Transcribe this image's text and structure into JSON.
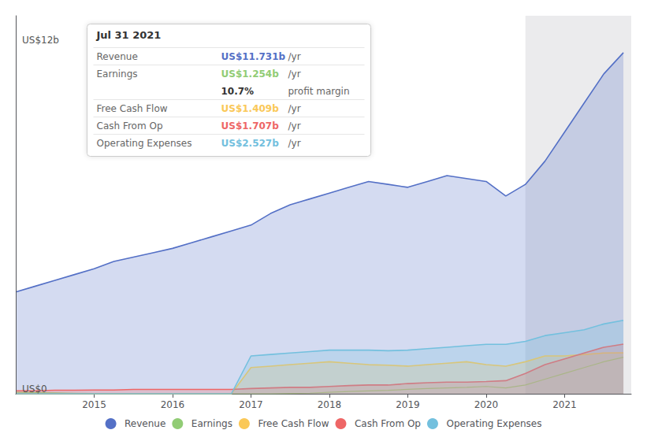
{
  "chart_data": {
    "type": "area",
    "x": [
      2014.0,
      2014.25,
      2014.5,
      2014.75,
      2015.0,
      2015.25,
      2015.5,
      2015.75,
      2016.0,
      2016.25,
      2016.5,
      2016.75,
      2017.0,
      2017.25,
      2017.5,
      2017.75,
      2018.0,
      2018.25,
      2018.5,
      2018.75,
      2019.0,
      2019.25,
      2019.5,
      2019.75,
      2020.0,
      2020.25,
      2020.5,
      2020.75,
      2021.0,
      2021.25,
      2021.5,
      2021.75
    ],
    "series": [
      {
        "name": "Revenue",
        "type": "area",
        "values": [
          3.5,
          3.7,
          3.9,
          4.1,
          4.3,
          4.55,
          4.7,
          4.85,
          5.0,
          5.2,
          5.4,
          5.6,
          5.8,
          6.2,
          6.5,
          6.7,
          6.9,
          7.1,
          7.3,
          7.2,
          7.1,
          7.3,
          7.5,
          7.4,
          7.3,
          6.8,
          7.2,
          8.0,
          9.0,
          10.0,
          11.0,
          11.731
        ]
      },
      {
        "name": "Earnings",
        "type": "line",
        "values": [
          0.05,
          0.04,
          0.03,
          0.02,
          0.01,
          0.0,
          0.0,
          0.0,
          0.0,
          0.0,
          0.0,
          0.0,
          0.0,
          0.0,
          0.01,
          0.02,
          0.05,
          0.08,
          0.1,
          0.12,
          0.15,
          0.18,
          0.2,
          0.22,
          0.25,
          0.2,
          0.3,
          0.5,
          0.7,
          0.9,
          1.1,
          1.254
        ]
      },
      {
        "name": "Free Cash Flow",
        "type": "area",
        "values": [
          0.0,
          0.0,
          0.0,
          0.0,
          0.0,
          0.0,
          0.0,
          0.0,
          0.0,
          0.0,
          0.0,
          0.0,
          0.9,
          0.95,
          1.0,
          1.05,
          1.1,
          1.05,
          1.0,
          0.98,
          0.95,
          1.0,
          1.05,
          1.1,
          1.0,
          0.95,
          1.1,
          1.3,
          1.3,
          1.35,
          1.4,
          1.409
        ]
      },
      {
        "name": "Cash From Op",
        "type": "area",
        "values": [
          0.1,
          0.1,
          0.12,
          0.12,
          0.13,
          0.13,
          0.15,
          0.15,
          0.15,
          0.15,
          0.15,
          0.15,
          0.18,
          0.2,
          0.22,
          0.22,
          0.25,
          0.28,
          0.3,
          0.3,
          0.35,
          0.38,
          0.4,
          0.4,
          0.42,
          0.45,
          0.7,
          1.0,
          1.2,
          1.4,
          1.6,
          1.707
        ]
      },
      {
        "name": "Operating Expenses",
        "type": "area",
        "values": [
          0.0,
          0.0,
          0.0,
          0.0,
          0.0,
          0.0,
          0.0,
          0.0,
          0.0,
          0.0,
          0.0,
          0.0,
          1.3,
          1.35,
          1.4,
          1.45,
          1.5,
          1.5,
          1.5,
          1.48,
          1.5,
          1.55,
          1.6,
          1.65,
          1.7,
          1.7,
          1.8,
          2.0,
          2.1,
          2.2,
          2.4,
          2.527
        ]
      }
    ],
    "xlim": [
      2014.0,
      2021.85
    ],
    "xticks": [
      2015,
      2016,
      2017,
      2018,
      2019,
      2020,
      2021
    ],
    "ylim": [
      0,
      13
    ],
    "yticks": [
      {
        "value": 0,
        "label": "US$0"
      },
      {
        "value": 12,
        "label": "US$12b"
      }
    ],
    "highlight_range": [
      2020.5,
      2021.85
    ],
    "grid": false,
    "legend": "bottom",
    "annotations": {
      "title": "Jul 31 2021",
      "rows": [
        {
          "label": "Revenue",
          "value": "US$11.731b",
          "suffix": "/yr"
        },
        {
          "label": "Earnings",
          "value": "US$1.254b",
          "suffix": "/yr"
        },
        {
          "value": "10.7%",
          "suffix": "profit margin"
        },
        {
          "label": "Free Cash Flow",
          "value": "US$1.409b",
          "suffix": "/yr"
        },
        {
          "label": "Cash From Op",
          "value": "US$1.707b",
          "suffix": "/yr"
        },
        {
          "label": "Operating Expenses",
          "value": "US$2.527b",
          "suffix": "/yr"
        }
      ]
    }
  }
}
